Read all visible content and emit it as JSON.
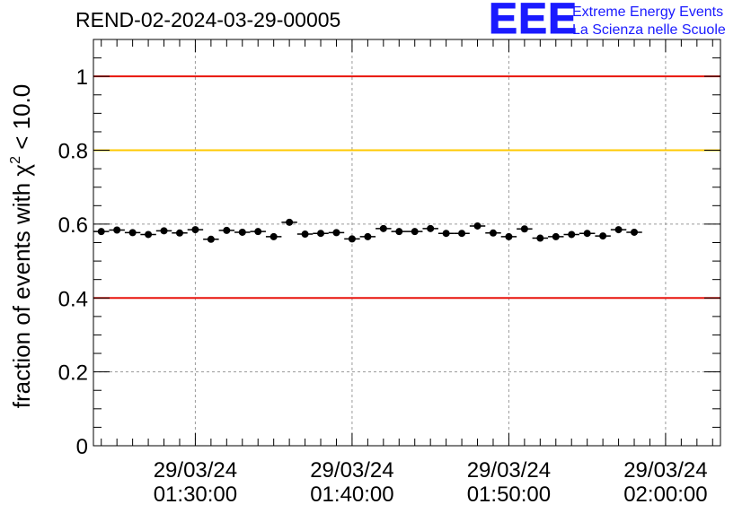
{
  "header": {
    "run_title": "REND-02-2024-03-29-00005"
  },
  "logo": {
    "mark": "EEE",
    "line1": "Extreme Energy Events",
    "line2": "La Scienza nelle Scuole",
    "color": "#1a1aff"
  },
  "chart_data": {
    "type": "scatter",
    "title": "",
    "xlabel": "",
    "ylabel_prefix": "fraction of events with ",
    "ylabel_symbol": "χ",
    "ylabel_sup": "2",
    "ylabel_suffix": " < 10.0",
    "x_axis": "time",
    "x_range": [
      "29/03/24 01:23:30",
      "02:03:30"
    ],
    "xticks": [
      {
        "date": "29/03/24",
        "time": "01:30:00"
      },
      {
        "date": "29/03/24",
        "time": "01:40:00"
      },
      {
        "date": "29/03/24",
        "time": "01:50:00"
      },
      {
        "date": "29/03/24",
        "time": "02:00:00"
      }
    ],
    "ylim": [
      0,
      1.1
    ],
    "yticks": [
      "0",
      "0.2",
      "0.4",
      "0.6",
      "0.8",
      "1"
    ],
    "grid": true,
    "reference_lines": [
      {
        "y": 1.0,
        "color": "#e8140c"
      },
      {
        "y": 0.8,
        "color": "#ffc800"
      },
      {
        "y": 0.4,
        "color": "#e8140c"
      }
    ],
    "marker_color": "#000000",
    "points": [
      {
        "time": "01:24:00",
        "y": 0.58
      },
      {
        "time": "01:25:00",
        "y": 0.584
      },
      {
        "time": "01:26:00",
        "y": 0.577
      },
      {
        "time": "01:27:00",
        "y": 0.572
      },
      {
        "time": "01:28:00",
        "y": 0.582
      },
      {
        "time": "01:29:00",
        "y": 0.576
      },
      {
        "time": "01:30:00",
        "y": 0.585
      },
      {
        "time": "01:31:00",
        "y": 0.559
      },
      {
        "time": "01:32:00",
        "y": 0.583
      },
      {
        "time": "01:33:00",
        "y": 0.578
      },
      {
        "time": "01:34:00",
        "y": 0.58
      },
      {
        "time": "01:35:00",
        "y": 0.566
      },
      {
        "time": "01:36:00",
        "y": 0.605
      },
      {
        "time": "01:37:00",
        "y": 0.573
      },
      {
        "time": "01:38:00",
        "y": 0.575
      },
      {
        "time": "01:39:00",
        "y": 0.577
      },
      {
        "time": "01:40:00",
        "y": 0.56
      },
      {
        "time": "01:41:00",
        "y": 0.566
      },
      {
        "time": "01:42:00",
        "y": 0.588
      },
      {
        "time": "01:43:00",
        "y": 0.58
      },
      {
        "time": "01:44:00",
        "y": 0.58
      },
      {
        "time": "01:45:00",
        "y": 0.588
      },
      {
        "time": "01:46:00",
        "y": 0.575
      },
      {
        "time": "01:47:00",
        "y": 0.575
      },
      {
        "time": "01:48:00",
        "y": 0.595
      },
      {
        "time": "01:49:00",
        "y": 0.576
      },
      {
        "time": "01:50:00",
        "y": 0.566
      },
      {
        "time": "01:51:00",
        "y": 0.587
      },
      {
        "time": "01:52:00",
        "y": 0.562
      },
      {
        "time": "01:53:00",
        "y": 0.566
      },
      {
        "time": "01:54:00",
        "y": 0.572
      },
      {
        "time": "01:55:00",
        "y": 0.575
      },
      {
        "time": "01:56:00",
        "y": 0.568
      },
      {
        "time": "01:57:00",
        "y": 0.585
      },
      {
        "time": "01:58:00",
        "y": 0.578
      }
    ],
    "y_error": 0.008
  }
}
